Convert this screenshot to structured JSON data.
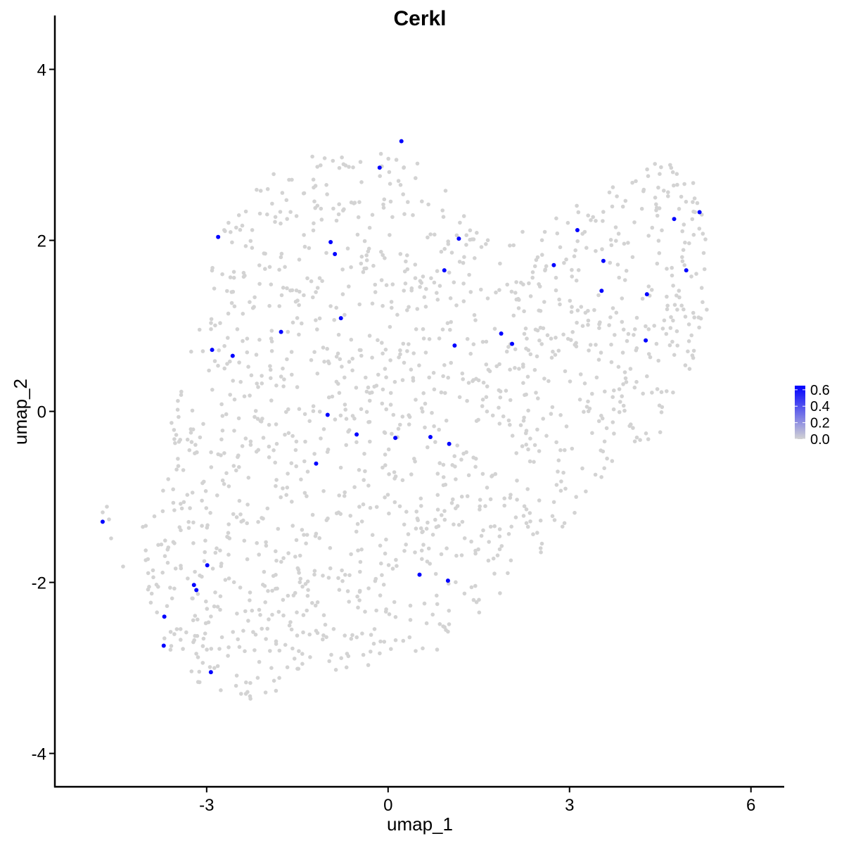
{
  "chart_data": {
    "type": "scatter",
    "title": "Cerkl",
    "xlabel": "umap_1",
    "ylabel": "umap_2",
    "xlim": [
      -5.51,
      6.55
    ],
    "ylim": [
      -4.39,
      4.63
    ],
    "x_ticks": [
      -3,
      0,
      3,
      6
    ],
    "x_tick_labels": [
      "-3",
      "0",
      "3",
      "6"
    ],
    "y_ticks": [
      -4,
      -2,
      0,
      2,
      4
    ],
    "y_tick_labels": [
      "-4",
      "-2",
      "0",
      "2",
      "4"
    ],
    "grid": false,
    "legend_placement": "right",
    "colors": {
      "low": "#d3d3d3",
      "high": "#0000ff"
    },
    "colorbar": {
      "range": [
        0,
        0.65
      ],
      "ticks": [
        0.0,
        0.2,
        0.4,
        0.6
      ],
      "tick_labels": [
        "0.0",
        "0.2",
        "0.4",
        "0.6"
      ]
    },
    "background_cells_expression": 0,
    "expressing_cells": [
      {
        "x": 0.22,
        "y": 3.16
      },
      {
        "x": -0.14,
        "y": 2.85
      },
      {
        "x": -2.81,
        "y": 2.04
      },
      {
        "x": -0.95,
        "y": 1.98
      },
      {
        "x": -0.88,
        "y": 1.84
      },
      {
        "x": 1.17,
        "y": 2.02
      },
      {
        "x": 0.93,
        "y": 1.65
      },
      {
        "x": -0.78,
        "y": 1.09
      },
      {
        "x": -1.77,
        "y": 0.93
      },
      {
        "x": -2.91,
        "y": 0.72
      },
      {
        "x": -2.57,
        "y": 0.65
      },
      {
        "x": 1.87,
        "y": 0.91
      },
      {
        "x": 2.05,
        "y": 0.79
      },
      {
        "x": 1.1,
        "y": 0.77
      },
      {
        "x": 2.74,
        "y": 1.71
      },
      {
        "x": 3.13,
        "y": 2.12
      },
      {
        "x": 3.56,
        "y": 1.76
      },
      {
        "x": 3.53,
        "y": 1.41
      },
      {
        "x": 4.28,
        "y": 1.37
      },
      {
        "x": 4.26,
        "y": 0.83
      },
      {
        "x": 4.73,
        "y": 2.25
      },
      {
        "x": 5.15,
        "y": 2.33
      },
      {
        "x": 4.93,
        "y": 1.65
      },
      {
        "x": -1.0,
        "y": -0.04
      },
      {
        "x": -0.52,
        "y": -0.27
      },
      {
        "x": 0.12,
        "y": -0.31
      },
      {
        "x": 0.7,
        "y": -0.3
      },
      {
        "x": 1.01,
        "y": -0.38
      },
      {
        "x": -1.19,
        "y": -0.61
      },
      {
        "x": -4.72,
        "y": -1.29
      },
      {
        "x": -2.99,
        "y": -1.8
      },
      {
        "x": -3.21,
        "y": -2.03
      },
      {
        "x": -3.17,
        "y": -2.09
      },
      {
        "x": -3.7,
        "y": -2.4
      },
      {
        "x": -3.71,
        "y": -2.74
      },
      {
        "x": -2.93,
        "y": -3.05
      },
      {
        "x": 0.52,
        "y": -1.91
      },
      {
        "x": 0.99,
        "y": -1.98
      }
    ]
  }
}
